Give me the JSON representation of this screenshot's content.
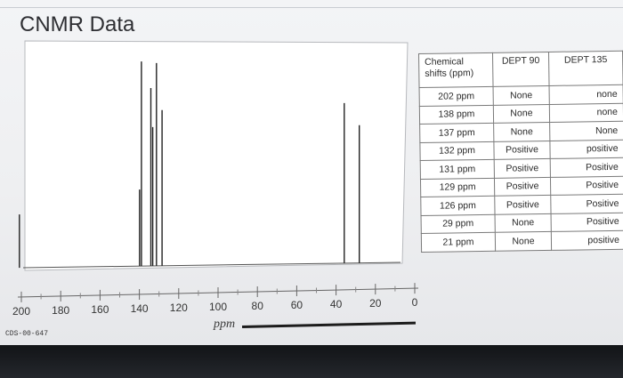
{
  "slide": {
    "title": "CNMR Data"
  },
  "spectrum": {
    "axis_ticks": [
      "200",
      "180",
      "160",
      "140",
      "120",
      "100",
      "80",
      "60",
      "40",
      "20",
      "0"
    ],
    "axis_unit": "ppm",
    "catalog_number": "CDS-00-647",
    "peaks_ppm": [
      202,
      138,
      137,
      132,
      131,
      129,
      126,
      29,
      21
    ]
  },
  "table": {
    "headers": [
      "Chemical shifts (ppm)",
      "DEPT 90",
      "DEPT 135"
    ],
    "rows": [
      [
        "202 ppm",
        "None",
        "none"
      ],
      [
        "138 ppm",
        "None",
        "none"
      ],
      [
        "137 ppm",
        "None",
        "None"
      ],
      [
        "132 ppm",
        "Positive",
        "positive"
      ],
      [
        "131 ppm",
        "Positive",
        "Positive"
      ],
      [
        "129 ppm",
        "Positive",
        "Positive"
      ],
      [
        "126 ppm",
        "Positive",
        "Positive"
      ],
      [
        "29 ppm",
        "None",
        "Positive"
      ],
      [
        "21 ppm",
        "None",
        "positive"
      ]
    ]
  }
}
